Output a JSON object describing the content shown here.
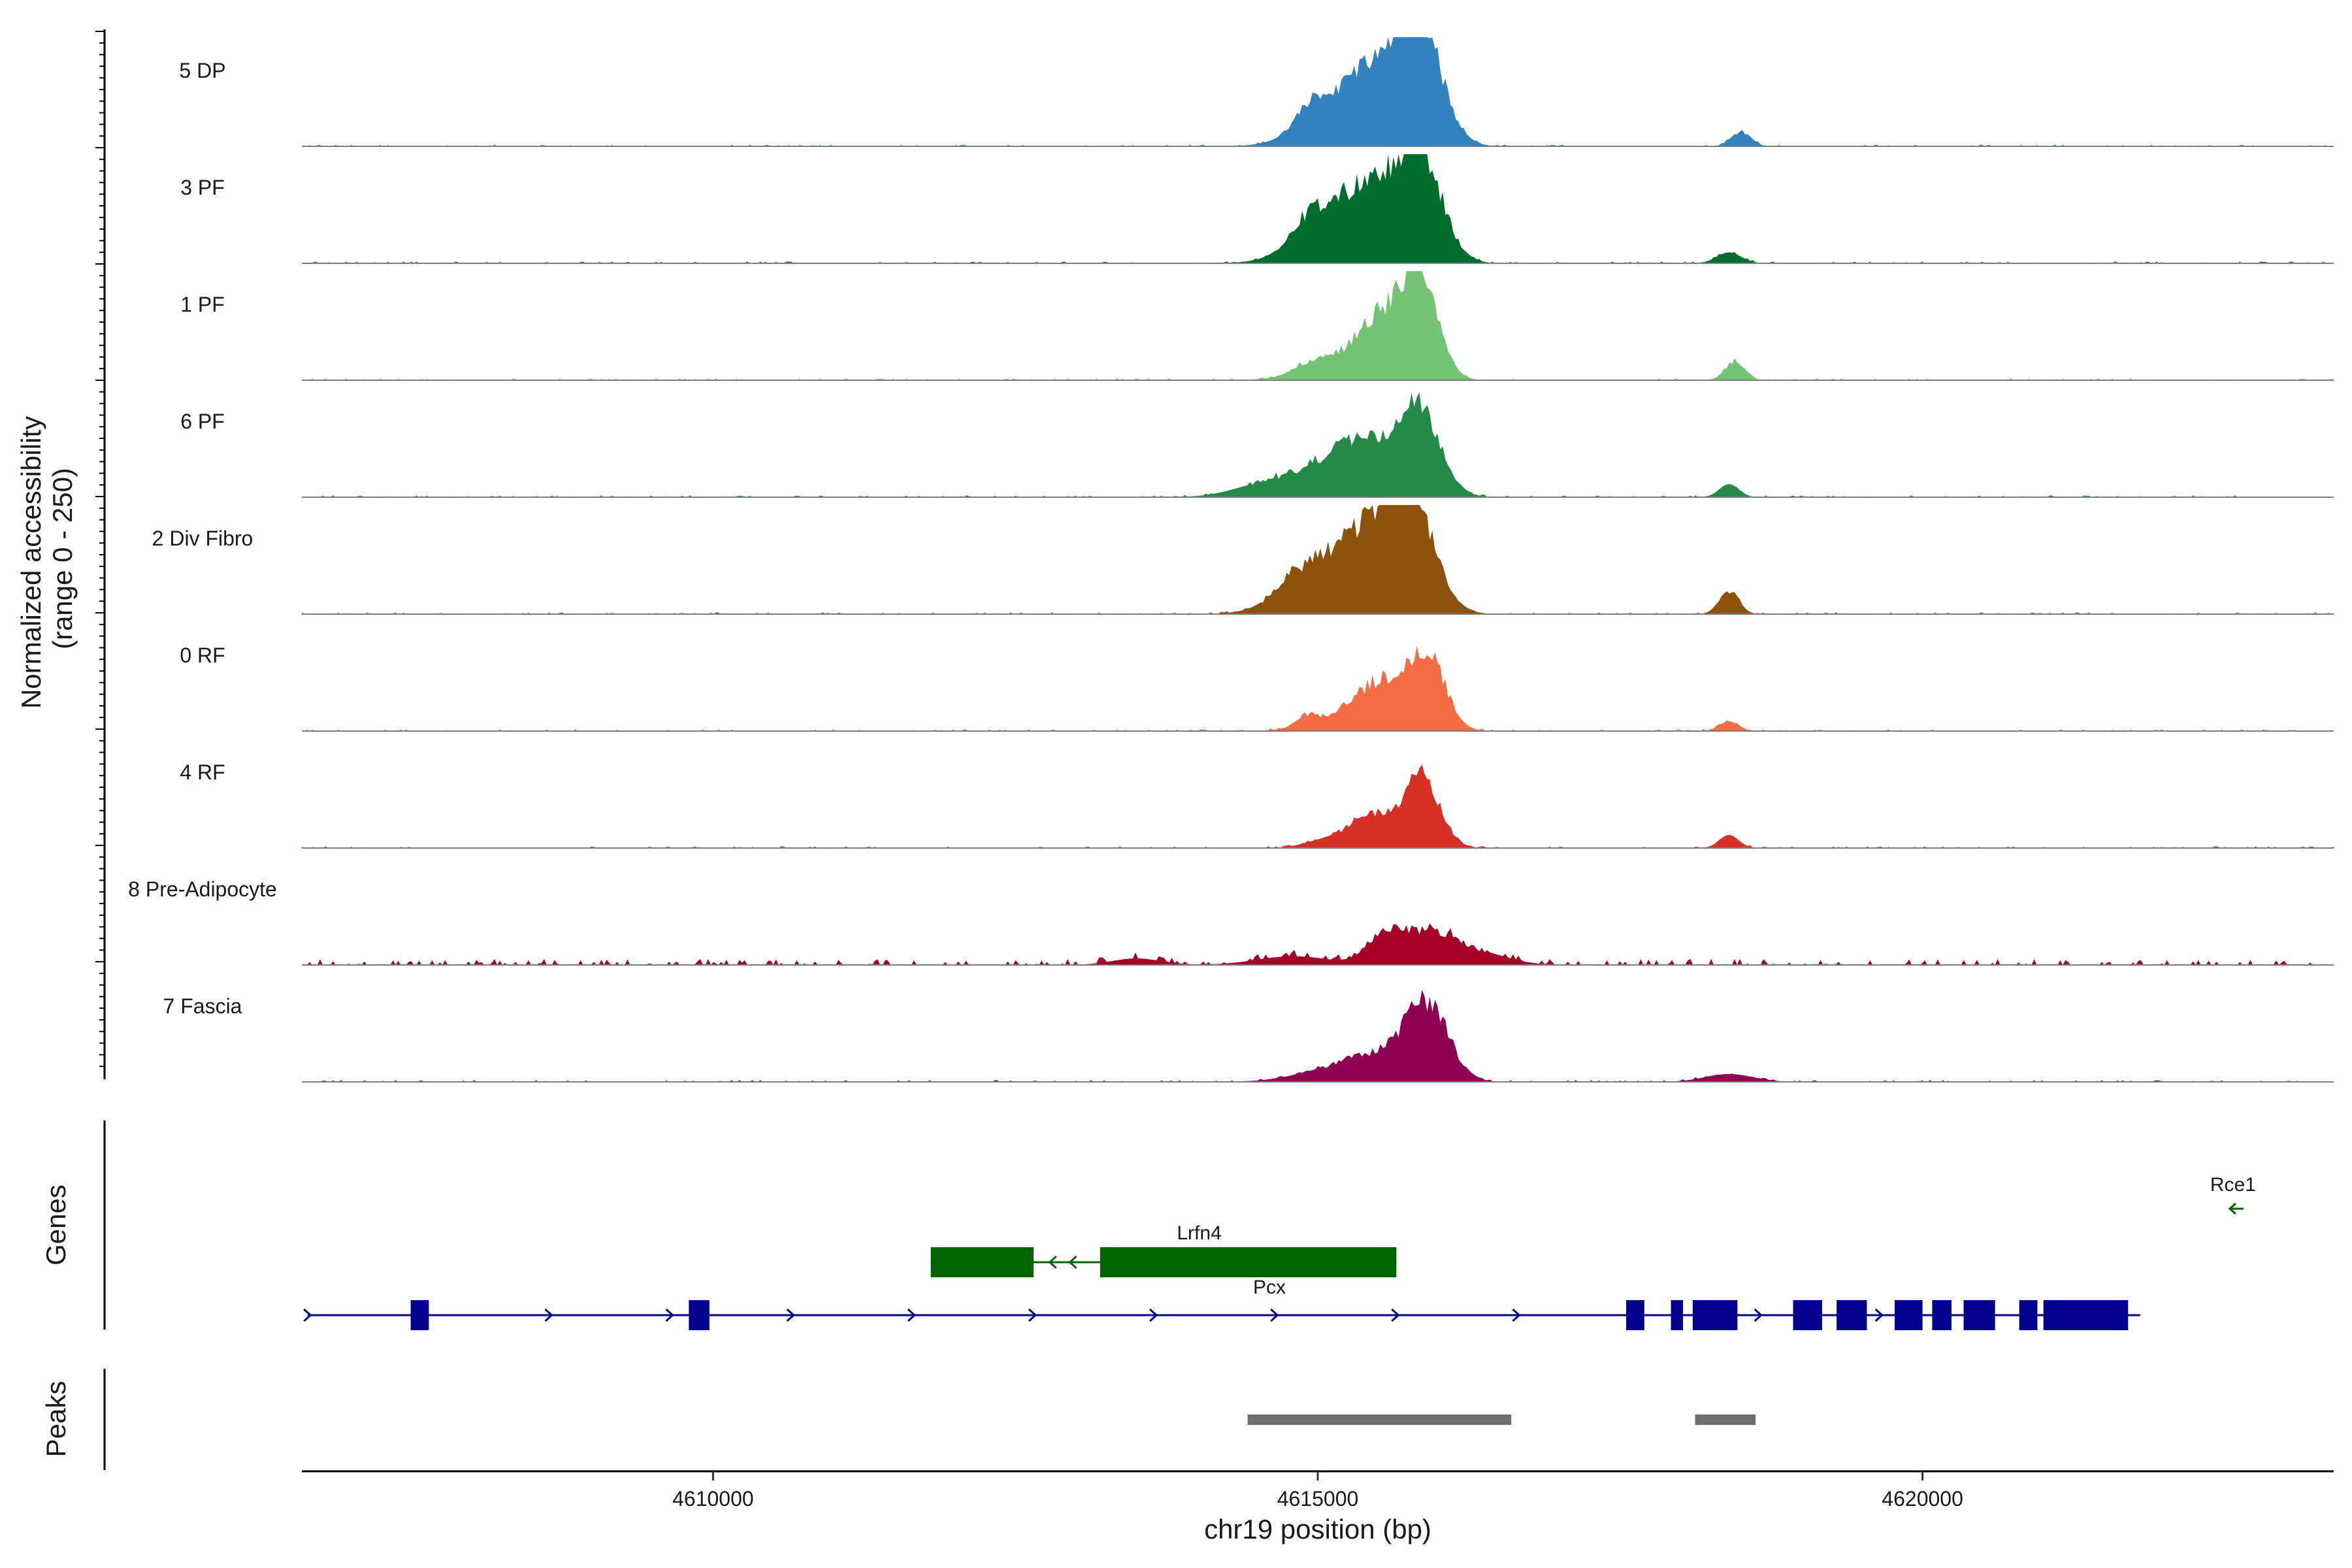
{
  "chart_data": {
    "type": "area",
    "title": "",
    "ylabel_line1": "Normalized accessibility",
    "ylabel_line2": "(range 0 - 250)",
    "ylim": [
      0,
      250
    ],
    "xlabel": "chr19 position (bp)",
    "xlim": [
      4606600,
      4623400
    ],
    "x_ticks": [
      4610000,
      4615000,
      4620000
    ],
    "x_tick_labels": [
      "4610000",
      "4615000",
      "4620000"
    ],
    "genes_label": "Genes",
    "peaks_label": "Peaks",
    "tracks": [
      {
        "name": "5 DP",
        "color": "#3182bd",
        "peaks": [
          [
            4615850,
            220,
            180
          ],
          [
            4615550,
            150,
            260
          ],
          [
            4615150,
            80,
            280
          ],
          [
            4614900,
            40,
            100
          ],
          [
            4618500,
            35,
            80
          ]
        ]
      },
      {
        "name": "3 PF",
        "color": "#006d2c",
        "peaks": [
          [
            4615850,
            210,
            180
          ],
          [
            4615500,
            140,
            260
          ],
          [
            4615100,
            90,
            280
          ],
          [
            4614900,
            35,
            120
          ],
          [
            4618400,
            25,
            100
          ]
        ]
      },
      {
        "name": "1 PF",
        "color": "#74c476",
        "peaks": [
          [
            4615850,
            200,
            150
          ],
          [
            4615550,
            125,
            200
          ],
          [
            4615200,
            40,
            280
          ],
          [
            4614950,
            18,
            150
          ],
          [
            4618450,
            45,
            80
          ]
        ]
      },
      {
        "name": "6 PF",
        "color": "#238b45",
        "peaks": [
          [
            4615850,
            190,
            170
          ],
          [
            4615400,
            110,
            250
          ],
          [
            4615000,
            55,
            300
          ],
          [
            4614500,
            20,
            250
          ],
          [
            4618400,
            30,
            80
          ]
        ]
      },
      {
        "name": "2 Div Fibro",
        "color": "#8c510a",
        "peaks": [
          [
            4615750,
            245,
            200
          ],
          [
            4615400,
            140,
            280
          ],
          [
            4615000,
            70,
            300
          ],
          [
            4614800,
            30,
            150
          ],
          [
            4618400,
            55,
            80
          ]
        ]
      },
      {
        "name": "0 RF",
        "color": "#f46d43",
        "peaks": [
          [
            4615900,
            165,
            150
          ],
          [
            4615550,
            100,
            200
          ],
          [
            4615200,
            35,
            250
          ],
          [
            4614900,
            20,
            80
          ],
          [
            4618400,
            22,
            80
          ]
        ]
      },
      {
        "name": "4 RF",
        "color": "#d73027",
        "peaks": [
          [
            4615850,
            170,
            150
          ],
          [
            4615450,
            70,
            150
          ],
          [
            4615150,
            25,
            200
          ],
          [
            4618400,
            30,
            80
          ]
        ]
      },
      {
        "name": "8 Pre-Adipocyte",
        "color": "#a50026",
        "peaks": [
          [
            4615550,
            60,
            150
          ],
          [
            4615900,
            70,
            200
          ],
          [
            4616300,
            30,
            250
          ],
          [
            4614800,
            20,
            300
          ],
          [
            4613500,
            15,
            200
          ]
        ]
      },
      {
        "name": "7 Fascia",
        "color": "#8e0152",
        "peaks": [
          [
            4615900,
            175,
            180
          ],
          [
            4615500,
            50,
            250
          ],
          [
            4615100,
            25,
            300
          ],
          [
            4618400,
            18,
            200
          ]
        ]
      }
    ],
    "genes": [
      {
        "name": "Lrfn4",
        "strand": "-",
        "color": "#006400",
        "start": 4611800,
        "end": 4615650,
        "exons": [
          [
            4611800,
            4612650
          ],
          [
            4613200,
            4615650
          ]
        ]
      },
      {
        "name": "Pcx",
        "strand": "+",
        "color": "#00008b",
        "start": 4606650,
        "end": 4621800,
        "exons": [
          [
            4607500,
            4607650
          ],
          [
            4609800,
            4609970
          ],
          [
            4617550,
            4617700
          ],
          [
            4617920,
            4618020
          ],
          [
            4618100,
            4618470
          ],
          [
            4618930,
            4619170
          ],
          [
            4619290,
            4619540
          ],
          [
            4619770,
            4620000
          ],
          [
            4620080,
            4620240
          ],
          [
            4620340,
            4620600
          ],
          [
            4620800,
            4620950
          ],
          [
            4621000,
            4621700
          ]
        ]
      },
      {
        "name": "Rce1",
        "strand": "-",
        "color": "#006400",
        "start": 4622500,
        "end": 4622700,
        "exons": []
      }
    ],
    "peaks": [
      {
        "start": 4614420,
        "end": 4616600
      },
      {
        "start": 4618120,
        "end": 4618620
      }
    ]
  }
}
